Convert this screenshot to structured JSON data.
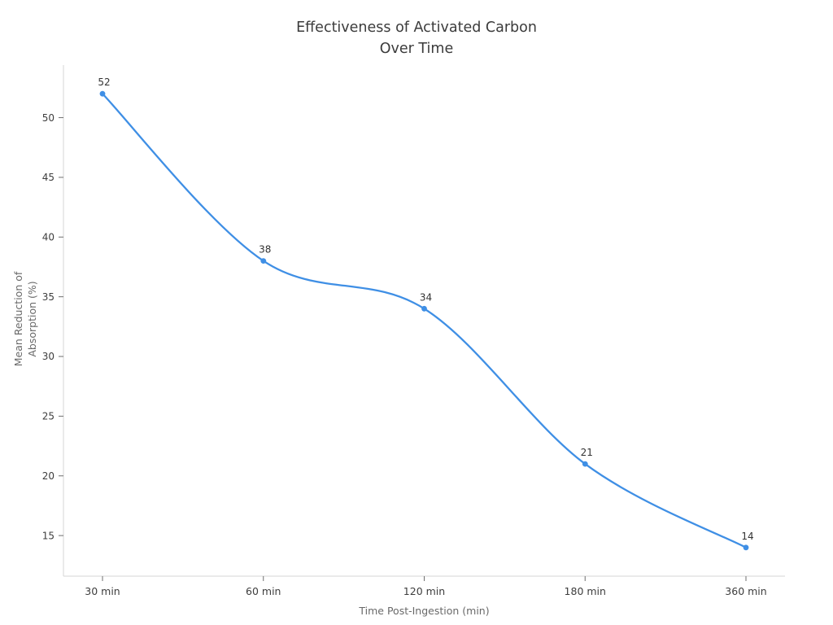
{
  "chart_data": {
    "type": "line",
    "title": "Effectiveness of Activated Carbon Over Time",
    "title_lines": [
      "Effectiveness of Activated Carbon",
      "Over Time"
    ],
    "xlabel": "Time Post-Ingestion (min)",
    "ylabel": "Mean Reduction of Absorption (%)",
    "ylabel_lines": [
      "Mean Reduction of",
      "Absorption (%)"
    ],
    "categories": [
      "30 min",
      "60 min",
      "120 min",
      "180 min",
      "360 min"
    ],
    "values": [
      52,
      38,
      34,
      21,
      14
    ],
    "point_labels": [
      "52",
      "38",
      "34",
      "21",
      "14"
    ],
    "yticks": [
      15,
      20,
      25,
      30,
      35,
      40,
      45,
      50
    ],
    "ylim": [
      11.6,
      54.4
    ],
    "x_axis_type": "categorical-evenly-spaced",
    "smooth": true,
    "grid": false,
    "legend": "none",
    "colors": {
      "line": "#3f8fe5",
      "marker": "#3f8fe5",
      "axis_line": "#d6d6d6",
      "tick": "#6f6f6f",
      "tick_label": "#3d3d3d",
      "axis_title": "#696969",
      "title": "#3b3b3b",
      "point_label": "#333333",
      "background": "#ffffff"
    }
  }
}
